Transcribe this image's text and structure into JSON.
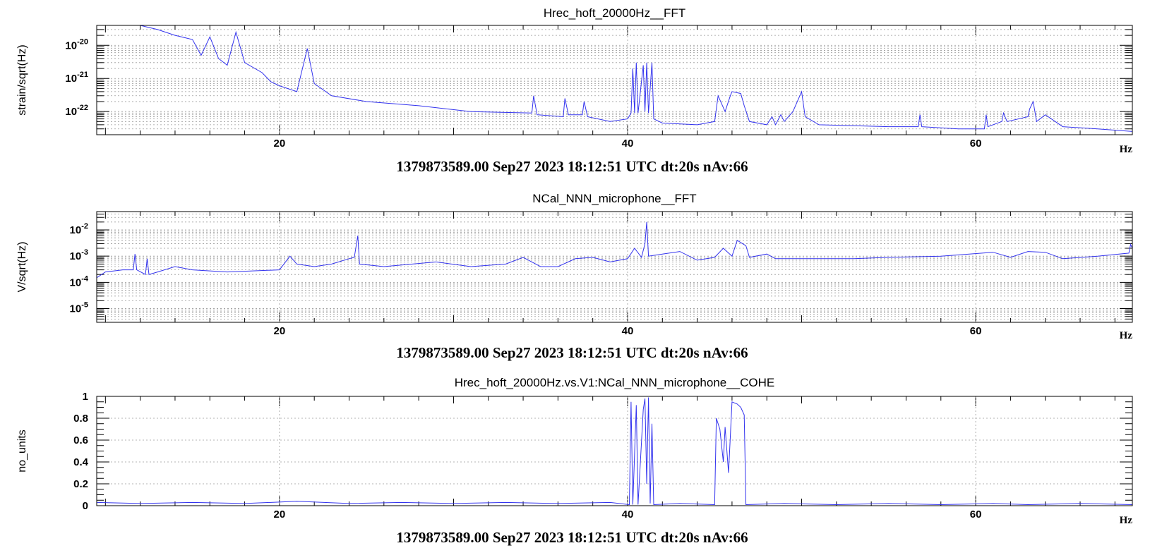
{
  "chart_data": [
    {
      "type": "line",
      "title": "Hrec_hoft_20000Hz__FFT",
      "ylabel": "strain/sqrt(Hz)",
      "xlabel": "Hz",
      "xlim": [
        9.5,
        69
      ],
      "ylim": [
        2e-23,
        4e-20
      ],
      "yscale": "log",
      "xticks": [
        20,
        40,
        60
      ],
      "yticks": [
        {
          "v": 1e-20,
          "exp": "-20"
        },
        {
          "v": 1e-21,
          "exp": "-21"
        },
        {
          "v": 1e-22,
          "exp": "-22"
        }
      ],
      "grid": true,
      "footer": "1379873589.00 Sep27 2023 18:12:51 UTC dt:20s nAv:66",
      "series": [
        {
          "color": "#3333ee",
          "points": [
            [
              9.5,
              4e-20
            ],
            [
              11,
              4e-20
            ],
            [
              12,
              4e-20
            ],
            [
              13,
              3e-20
            ],
            [
              14,
              2e-20
            ],
            [
              15,
              1.5e-20
            ],
            [
              15.5,
              5e-21
            ],
            [
              16,
              1.8e-20
            ],
            [
              16.5,
              4e-21
            ],
            [
              17,
              2.5e-21
            ],
            [
              17.5,
              2.5e-20
            ],
            [
              18,
              3e-21
            ],
            [
              19,
              1.5e-21
            ],
            [
              19.5,
              8e-22
            ],
            [
              20,
              6e-22
            ],
            [
              21,
              4e-22
            ],
            [
              21.6,
              8e-21
            ],
            [
              22,
              7e-22
            ],
            [
              23,
              3e-22
            ],
            [
              25,
              2e-22
            ],
            [
              28,
              1.5e-22
            ],
            [
              31,
              1e-22
            ],
            [
              34.5,
              9e-23
            ],
            [
              34.6,
              3e-22
            ],
            [
              34.8,
              8e-23
            ],
            [
              36.3,
              7e-23
            ],
            [
              36.4,
              2.5e-22
            ],
            [
              36.6,
              8e-23
            ],
            [
              37.4,
              8e-23
            ],
            [
              37.5,
              2e-22
            ],
            [
              37.7,
              7e-23
            ],
            [
              39,
              5e-23
            ],
            [
              40,
              6e-23
            ],
            [
              40.2,
              9e-23
            ],
            [
              40.3,
              2e-21
            ],
            [
              40.4,
              9e-23
            ],
            [
              40.5,
              3e-21
            ],
            [
              40.6,
              9e-23
            ],
            [
              40.9,
              2.5e-21
            ],
            [
              41,
              1e-22
            ],
            [
              41.1,
              3e-21
            ],
            [
              41.2,
              9e-23
            ],
            [
              41.4,
              3e-21
            ],
            [
              41.5,
              6e-23
            ],
            [
              42,
              4.5e-23
            ],
            [
              44,
              4e-23
            ],
            [
              45,
              5e-23
            ],
            [
              45.2,
              3e-22
            ],
            [
              45.6,
              1e-22
            ],
            [
              45.9,
              3e-22
            ],
            [
              46,
              4e-22
            ],
            [
              46.5,
              3.5e-22
            ],
            [
              46.7,
              1.5e-22
            ],
            [
              47,
              5e-23
            ],
            [
              48,
              4e-23
            ],
            [
              48.3,
              7e-23
            ],
            [
              48.5,
              4e-23
            ],
            [
              48.8,
              8e-23
            ],
            [
              49,
              5e-23
            ],
            [
              49.5,
              1e-22
            ],
            [
              50,
              4e-22
            ],
            [
              50.2,
              7e-23
            ],
            [
              51,
              4e-23
            ],
            [
              55,
              3.5e-23
            ],
            [
              56.7,
              3.5e-23
            ],
            [
              56.8,
              8e-23
            ],
            [
              56.9,
              3.5e-23
            ],
            [
              59,
              3e-23
            ],
            [
              60.5,
              3e-23
            ],
            [
              60.6,
              8e-23
            ],
            [
              60.7,
              3.5e-23
            ],
            [
              61.5,
              5e-23
            ],
            [
              61.6,
              9e-23
            ],
            [
              61.8,
              5e-23
            ],
            [
              63,
              7e-23
            ],
            [
              63.1,
              1.2e-22
            ],
            [
              63.3,
              2e-22
            ],
            [
              63.5,
              5e-23
            ],
            [
              64,
              8e-23
            ],
            [
              65,
              3.5e-23
            ],
            [
              67,
              3e-23
            ],
            [
              69,
              2.5e-23
            ]
          ]
        }
      ]
    },
    {
      "type": "line",
      "title": "NCal_NNN_microphone__FFT",
      "ylabel": "V/sqrt(Hz)",
      "xlabel": "Hz",
      "xlim": [
        9.5,
        69
      ],
      "ylim": [
        3e-06,
        0.05
      ],
      "yscale": "log",
      "xticks": [
        20,
        40,
        60
      ],
      "yticks": [
        {
          "v": 0.01,
          "exp": "-2"
        },
        {
          "v": 0.001,
          "exp": "-3"
        },
        {
          "v": 0.0001,
          "exp": "-4"
        },
        {
          "v": 1e-05,
          "exp": "-5"
        }
      ],
      "grid": true,
      "footer": "1379873589.00 Sep27 2023 18:12:51 UTC dt:20s nAv:66",
      "series": [
        {
          "color": "#3333ee",
          "points": [
            [
              9.5,
              0.00015
            ],
            [
              10,
              0.00025
            ],
            [
              11,
              0.0003
            ],
            [
              11.6,
              0.0003
            ],
            [
              11.7,
              0.0012
            ],
            [
              11.8,
              0.0003
            ],
            [
              12.3,
              0.0002
            ],
            [
              12.4,
              0.0008
            ],
            [
              12.5,
              0.0002
            ],
            [
              13,
              0.00025
            ],
            [
              14,
              0.0004
            ],
            [
              15,
              0.0003
            ],
            [
              17,
              0.00025
            ],
            [
              20,
              0.0003
            ],
            [
              20.6,
              0.001
            ],
            [
              21,
              0.0005
            ],
            [
              22,
              0.0004
            ],
            [
              23,
              0.0005
            ],
            [
              24,
              0.0008
            ],
            [
              24.3,
              0.0009
            ],
            [
              24.5,
              0.006
            ],
            [
              24.6,
              0.0005
            ],
            [
              26,
              0.0004
            ],
            [
              29,
              0.0006
            ],
            [
              31,
              0.0004
            ],
            [
              33,
              0.0005
            ],
            [
              34,
              0.0009
            ],
            [
              35,
              0.0004
            ],
            [
              36,
              0.0004
            ],
            [
              37,
              0.0008
            ],
            [
              38,
              0.0009
            ],
            [
              39,
              0.0006
            ],
            [
              40,
              0.0008
            ],
            [
              40.4,
              0.002
            ],
            [
              40.8,
              0.0009
            ],
            [
              41,
              0.003
            ],
            [
              41.1,
              0.02
            ],
            [
              41.2,
              0.001
            ],
            [
              42,
              0.0012
            ],
            [
              43,
              0.0015
            ],
            [
              44,
              0.0007
            ],
            [
              45,
              0.0009
            ],
            [
              45.5,
              0.002
            ],
            [
              46,
              0.001
            ],
            [
              46.3,
              0.004
            ],
            [
              46.8,
              0.0025
            ],
            [
              47,
              0.0009
            ],
            [
              48,
              0.0012
            ],
            [
              48.5,
              0.0008
            ],
            [
              49,
              0.0008
            ],
            [
              50,
              0.0008
            ],
            [
              53,
              0.0008
            ],
            [
              55,
              0.0009
            ],
            [
              58,
              0.001
            ],
            [
              61,
              0.0014
            ],
            [
              62,
              0.0009
            ],
            [
              63,
              0.0015
            ],
            [
              64,
              0.0014
            ],
            [
              65,
              0.0008
            ],
            [
              67,
              0.001
            ],
            [
              68.8,
              0.0013
            ],
            [
              68.9,
              0.0028
            ],
            [
              69,
              0.002
            ]
          ]
        }
      ]
    },
    {
      "type": "line",
      "title": "Hrec_hoft_20000Hz.vs.V1:NCal_NNN_microphone__COHE",
      "ylabel": "no_units",
      "xlabel": "Hz",
      "xlim": [
        9.5,
        69
      ],
      "ylim": [
        0,
        1
      ],
      "yscale": "linear",
      "xticks": [
        20,
        40,
        60
      ],
      "yticks": [
        {
          "v": 0,
          "label": "0"
        },
        {
          "v": 0.2,
          "label": "0.2"
        },
        {
          "v": 0.4,
          "label": "0.4"
        },
        {
          "v": 0.6,
          "label": "0.6"
        },
        {
          "v": 0.8,
          "label": "0.8"
        },
        {
          "v": 1,
          "label": "1"
        }
      ],
      "grid": true,
      "footer": "1379873589.00 Sep27 2023 18:12:51 UTC dt:20s nAv:66",
      "series": [
        {
          "color": "#3333ee",
          "points": [
            [
              9.5,
              0.03
            ],
            [
              12,
              0.02
            ],
            [
              15,
              0.03
            ],
            [
              18,
              0.02
            ],
            [
              21,
              0.04
            ],
            [
              24,
              0.02
            ],
            [
              27,
              0.03
            ],
            [
              30,
              0.02
            ],
            [
              33,
              0.03
            ],
            [
              36,
              0.02
            ],
            [
              39,
              0.03
            ],
            [
              40.1,
              0.01
            ],
            [
              40.2,
              0.95
            ],
            [
              40.3,
              0.01
            ],
            [
              40.5,
              0.92
            ],
            [
              40.6,
              0.01
            ],
            [
              40.9,
              0.88
            ],
            [
              41,
              0.98
            ],
            [
              41.1,
              0.2
            ],
            [
              41.2,
              0.99
            ],
            [
              41.3,
              0.02
            ],
            [
              41.4,
              0.75
            ],
            [
              41.5,
              0.01
            ],
            [
              43,
              0.02
            ],
            [
              45,
              0.01
            ],
            [
              45.1,
              0.8
            ],
            [
              45.3,
              0.7
            ],
            [
              45.5,
              0.4
            ],
            [
              45.6,
              0.72
            ],
            [
              45.8,
              0.3
            ],
            [
              46,
              0.95
            ],
            [
              46.3,
              0.93
            ],
            [
              46.5,
              0.9
            ],
            [
              46.7,
              0.83
            ],
            [
              46.8,
              0.01
            ],
            [
              49,
              0.02
            ],
            [
              52,
              0.01
            ],
            [
              55,
              0.02
            ],
            [
              58,
              0.01
            ],
            [
              61,
              0.02
            ],
            [
              63,
              0.01
            ],
            [
              66,
              0.02
            ],
            [
              69,
              0.01
            ]
          ]
        }
      ]
    }
  ]
}
